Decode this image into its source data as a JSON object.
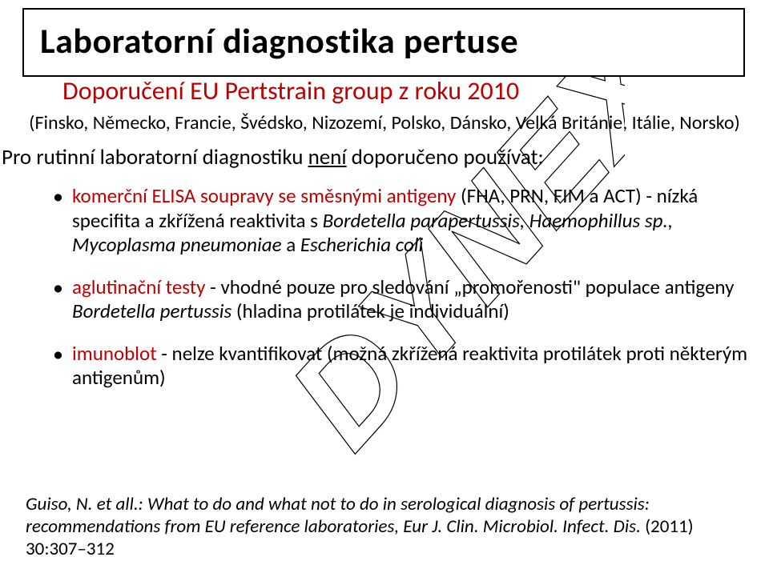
{
  "title": "Laboratorní diagnostika pertuse",
  "subtitle": "Doporučení EU Pertstrain group z roku 2010",
  "countries": "(Finsko, Německo, Francie, Švédsko, Nizozemí, Polsko, Dánsko, Velká Británie, Itálie, Norsko)",
  "intro_prefix": "Pro rutinní laboratorní diagnostiku ",
  "intro_underline": "není",
  "intro_suffix": " doporučeno používat:",
  "bullets": [
    {
      "label": "komerční ELISA soupravy se směsnými antigeny ",
      "rest": "(FHA, PRN, FIM a ACT) - nízká specifita a zkřížená reaktivita s ",
      "italics": "Bordetella parapertussis, Haemophillus sp., Mycoplasma pneumoniae ",
      "rest2": "a ",
      "italics2": "Escherichia coli"
    },
    {
      "label": "aglutinační testy ",
      "rest": "- vhodné pouze pro sledování „promořenosti\" populace antigeny ",
      "italics": "Bordetella pertussis ",
      "rest2": "(hladina protilátek je individuální)",
      "italics2": ""
    },
    {
      "label": "imunoblot ",
      "rest": "- nelze kvantifikovat (možná zkřížená reaktivita protilátek proti některým antigenům)",
      "italics": "",
      "rest2": "",
      "italics2": ""
    }
  ],
  "citation_author": "Guiso, N. et all.: ",
  "citation_title": "What to do and what not to do in serological diagnosis of pertussis: recommendations from EU reference laboratories, Eur J. Clin. Microbiol. Infect. Dis. ",
  "citation_loc": "(2011) 30:307–312",
  "watermark_text": "DYNEX",
  "colors": {
    "accent": "#c00000",
    "text": "#000000",
    "background": "#ffffff",
    "watermark_stroke": "#000000"
  }
}
